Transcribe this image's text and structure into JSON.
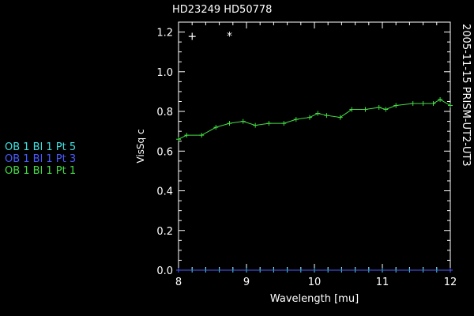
{
  "chart_data": {
    "type": "line",
    "title": "HD23249  HD50778",
    "right_label": "2005-11-15 PRISM-UT2-UT3",
    "xlabel": "Wavelength [mu]",
    "ylabel": "VisSq c",
    "xlim": [
      8,
      12
    ],
    "ylim": [
      0,
      1.25
    ],
    "xticks": [
      8,
      9,
      10,
      11,
      12
    ],
    "yticks": [
      0.0,
      0.2,
      0.4,
      0.6,
      0.8,
      1.0,
      1.2
    ],
    "ytick_labels": [
      "0.0",
      "0.2",
      "0.4",
      "0.6",
      "0.8",
      "1.0",
      "1.2"
    ],
    "grid": false,
    "legend_position": "left",
    "legend": [
      {
        "label": "OB 1 Bl 1 Pt 5",
        "color": "#3ee0e0"
      },
      {
        "label": "OB 1 Bl 1 Pt 3",
        "color": "#4a5cff"
      },
      {
        "label": "OB 1 Bl 1 Pt 1",
        "color": "#44dd44"
      }
    ],
    "series": [
      {
        "name": "OB 1 Bl 1 Pt 1",
        "color": "#44dd44",
        "marker": "+",
        "x": [
          8.0,
          8.12,
          8.34,
          8.55,
          8.75,
          8.95,
          9.13,
          9.33,
          9.55,
          9.73,
          9.93,
          10.05,
          10.18,
          10.38,
          10.55,
          10.75,
          10.95,
          11.05,
          11.2,
          11.45,
          11.6,
          11.75,
          11.85,
          12.0
        ],
        "y": [
          0.66,
          0.68,
          0.68,
          0.72,
          0.74,
          0.75,
          0.73,
          0.74,
          0.74,
          0.76,
          0.77,
          0.79,
          0.78,
          0.77,
          0.81,
          0.81,
          0.82,
          0.81,
          0.83,
          0.84,
          0.84,
          0.84,
          0.86,
          0.83
        ]
      },
      {
        "name": "OB 1 Bl 1 Pt 5",
        "color": "#3ee0e0",
        "marker": "+",
        "x": [
          8.0,
          8.2,
          8.4,
          8.6,
          8.8,
          9.0,
          9.2,
          9.4,
          9.6,
          9.8,
          10.0,
          10.2,
          10.4,
          10.6,
          10.8,
          11.0,
          11.2,
          11.4,
          11.6,
          11.8,
          12.0
        ],
        "y": [
          0,
          0,
          0,
          0,
          0,
          0,
          0,
          0,
          0,
          0,
          0,
          0,
          0,
          0,
          0,
          0,
          0,
          0,
          0,
          0,
          0
        ]
      },
      {
        "name": "OB 1 Bl 1 Pt 3",
        "color": "#4a5cff",
        "marker": "+",
        "x": [
          8.0,
          12.0
        ],
        "y": [
          0,
          0
        ]
      }
    ],
    "extra_markers": [
      {
        "x": 8.2,
        "y": 1.18,
        "symbol": "+",
        "color": "#ffffff"
      },
      {
        "x": 8.75,
        "y": 1.18,
        "symbol": "*",
        "color": "#ffffff"
      }
    ]
  }
}
